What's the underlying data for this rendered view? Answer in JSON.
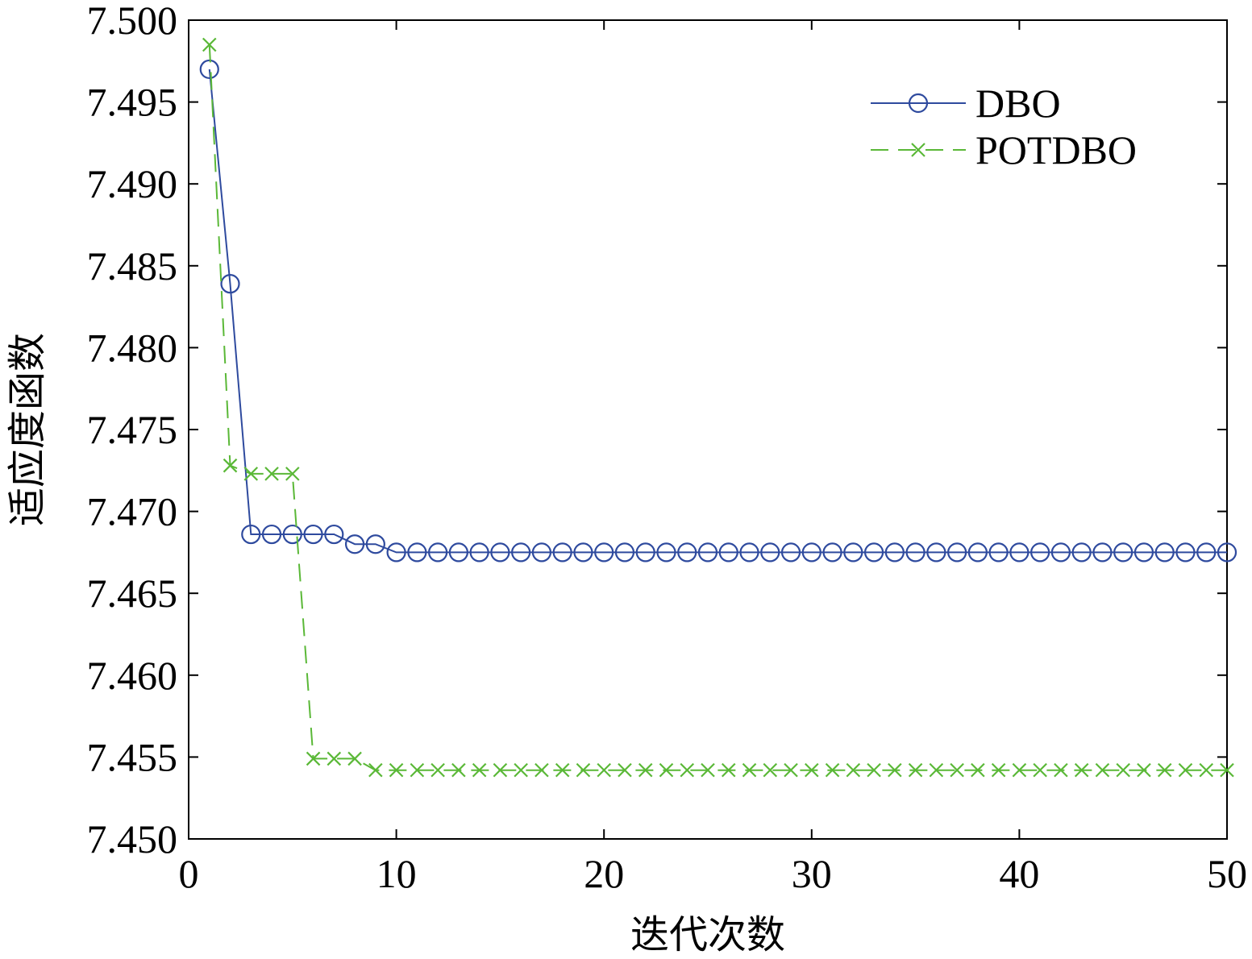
{
  "chart_data": {
    "type": "line",
    "xlabel": "迭代次数",
    "ylabel": "适应度函数",
    "xlim": [
      0,
      50
    ],
    "ylim": [
      7.45,
      7.5
    ],
    "xticks": [
      0,
      10,
      20,
      30,
      40,
      50
    ],
    "xtick_labels": [
      "0",
      "10",
      "20",
      "30",
      "40",
      "50"
    ],
    "yticks": [
      7.45,
      7.455,
      7.46,
      7.465,
      7.47,
      7.475,
      7.48,
      7.485,
      7.49,
      7.495,
      7.5
    ],
    "ytick_labels": [
      "7.450",
      "7.455",
      "7.460",
      "7.465",
      "7.470",
      "7.475",
      "7.480",
      "7.485",
      "7.490",
      "7.495",
      "7.500"
    ],
    "grid": false,
    "legend_position": "top-right",
    "x": [
      1,
      2,
      3,
      4,
      5,
      6,
      7,
      8,
      9,
      10,
      11,
      12,
      13,
      14,
      15,
      16,
      17,
      18,
      19,
      20,
      21,
      22,
      23,
      24,
      25,
      26,
      27,
      28,
      29,
      30,
      31,
      32,
      33,
      34,
      35,
      36,
      37,
      38,
      39,
      40,
      41,
      42,
      43,
      44,
      45,
      46,
      47,
      48,
      49,
      50
    ],
    "series": [
      {
        "name": "DBO",
        "color": "#2e4a9e",
        "marker": "circle",
        "line_style": "solid",
        "values": [
          7.497,
          7.4839,
          7.4686,
          7.4686,
          7.4686,
          7.4686,
          7.4686,
          7.468,
          7.468,
          7.4675,
          7.4675,
          7.4675,
          7.4675,
          7.4675,
          7.4675,
          7.4675,
          7.4675,
          7.4675,
          7.4675,
          7.4675,
          7.4675,
          7.4675,
          7.4675,
          7.4675,
          7.4675,
          7.4675,
          7.4675,
          7.4675,
          7.4675,
          7.4675,
          7.4675,
          7.4675,
          7.4675,
          7.4675,
          7.4675,
          7.4675,
          7.4675,
          7.4675,
          7.4675,
          7.4675,
          7.4675,
          7.4675,
          7.4675,
          7.4675,
          7.4675,
          7.4675,
          7.4675,
          7.4675,
          7.4675,
          7.4675
        ]
      },
      {
        "name": "POTDBO",
        "color": "#5ab837",
        "marker": "x",
        "line_style": "dashed",
        "values": [
          7.4985,
          7.4728,
          7.4723,
          7.4723,
          7.4723,
          7.4549,
          7.4549,
          7.4549,
          7.4542,
          7.4542,
          7.4542,
          7.4542,
          7.4542,
          7.4542,
          7.4542,
          7.4542,
          7.4542,
          7.4542,
          7.4542,
          7.4542,
          7.4542,
          7.4542,
          7.4542,
          7.4542,
          7.4542,
          7.4542,
          7.4542,
          7.4542,
          7.4542,
          7.4542,
          7.4542,
          7.4542,
          7.4542,
          7.4542,
          7.4542,
          7.4542,
          7.4542,
          7.4542,
          7.4542,
          7.4542,
          7.4542,
          7.4542,
          7.4542,
          7.4542,
          7.4542,
          7.4542,
          7.4542,
          7.4542,
          7.4542,
          7.4542
        ]
      }
    ]
  }
}
